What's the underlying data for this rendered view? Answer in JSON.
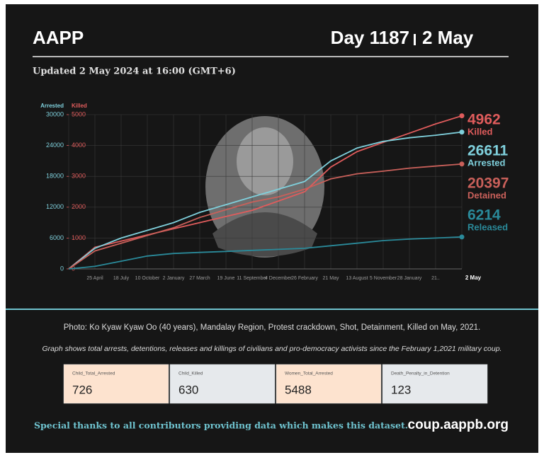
{
  "header": {
    "title": "AAPP",
    "day": "Day 1187",
    "date": "2 May",
    "updated": "Updated 2 May 2024 at 16:00 (GMT+6)"
  },
  "chart_data": {
    "type": "line",
    "ylabel": "Arrested",
    "y2label": "Killed",
    "categories": [
      null,
      "25 April",
      "18 July",
      "10 October",
      "2 January",
      "27 March",
      "19 June",
      "11 September",
      "4 December",
      "26 February",
      "21 May",
      "13 August",
      "5 November",
      "28 January",
      "21..",
      "2 May"
    ],
    "ylim": [
      0,
      30000
    ],
    "yticks": [
      0,
      6000,
      12000,
      18000,
      24000,
      30000
    ],
    "y2lim": [
      0,
      5000
    ],
    "y2ticks": [
      0,
      1000,
      2000,
      3000,
      4000,
      5000
    ],
    "grid": true,
    "series": [
      {
        "name": "Killed",
        "color": "#e05c5c",
        "axis": "y2",
        "values": [
          0,
          700,
          900,
          1100,
          1300,
          1500,
          1700,
          1900,
          2200,
          2500,
          3300,
          3800,
          4100,
          4400,
          4700,
          4962
        ]
      },
      {
        "name": "Arrested",
        "color": "#7fd0dc",
        "values": [
          0,
          4000,
          6000,
          7500,
          9000,
          11000,
          12500,
          14000,
          15500,
          17000,
          21000,
          23500,
          24800,
          25500,
          26000,
          26611
        ]
      },
      {
        "name": "Detained",
        "color": "#c9605a",
        "values": [
          0,
          3500,
          5000,
          6500,
          8000,
          10000,
          11500,
          13000,
          14000,
          15500,
          17500,
          18500,
          19000,
          19600,
          20000,
          20397
        ]
      },
      {
        "name": "Released",
        "color": "#2a8a9a",
        "values": [
          0,
          500,
          1500,
          2500,
          3000,
          3200,
          3400,
          3600,
          3800,
          4000,
          4500,
          5000,
          5500,
          5800,
          6000,
          6214
        ]
      }
    ]
  },
  "caption": "Photo: Ko Kyaw Kyaw Oo (40 years), Mandalay Region, Protest crackdown, Shot, Detainment, Killed on May, 2021.",
  "note": "Graph shows total arrests, detentions, releases and killings of civilians and pro-democracy activists since the February 1,2021 military coup.",
  "stats": [
    {
      "label": "Child_Total_Arrested",
      "value": "726"
    },
    {
      "label": "Child_Killed",
      "value": "630"
    },
    {
      "label": "Women_Total_Arrested",
      "value": "5488"
    },
    {
      "label": "Death_Penalty_in_Detention",
      "value": "123"
    }
  ],
  "footer": {
    "thanks": "Special thanks to all contributors providing data which makes this dataset.",
    "url": "coup.aappb.org"
  }
}
